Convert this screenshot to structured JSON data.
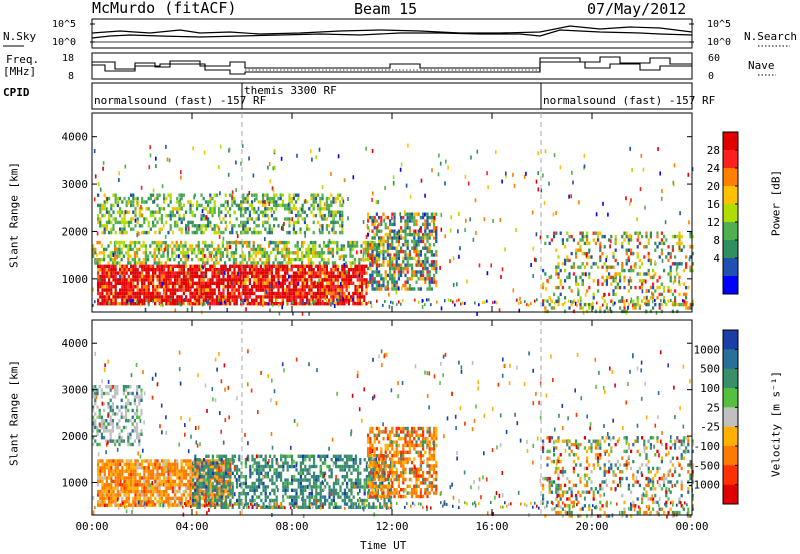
{
  "header": {
    "station": "McMurdo (fitACF)",
    "beam": "Beam 15",
    "date": "07/May/2012"
  },
  "noise_panel": {
    "left_label": "N.Sky",
    "right_label": "N.Search",
    "left_ticks": [
      "10^5",
      "10^0"
    ],
    "right_ticks": [
      "10^5",
      "10^0"
    ]
  },
  "freq_panel": {
    "left_label_1": "Freq.",
    "left_label_2": "[MHz]",
    "right_label": "Nave",
    "left_ticks": [
      "18",
      "8"
    ],
    "right_ticks": [
      "60",
      "0"
    ]
  },
  "cpid": {
    "label": "CPID",
    "segments": [
      {
        "text": "normalsound (fast) -157 RF",
        "start_hour": 0
      },
      {
        "text": "themis 3300 RF",
        "start_hour": 6
      },
      {
        "text": "normalsound (fast) -157 RF",
        "start_hour": 18
      }
    ]
  },
  "chart_data": [
    {
      "type": "heatmap",
      "name": "power",
      "xlabel": "Time UT",
      "ylabel": "Slant Range [km]",
      "xlim": [
        0,
        24
      ],
      "ylim": [
        300,
        4500
      ],
      "y_ticks": [
        1000,
        2000,
        3000,
        4000
      ],
      "x_tick_labels": [
        "00:00",
        "04:00",
        "08:00",
        "12:00",
        "16:00",
        "20:00",
        "00:00"
      ],
      "colorbar": {
        "label": "Power [dB]",
        "ticks": [
          "28",
          "24",
          "20",
          "16",
          "12",
          "8",
          "4"
        ],
        "colors": [
          "#e00000",
          "#ff2020",
          "#ff7f00",
          "#ffc000",
          "#b0dc00",
          "#50b050",
          "#2f8f5f",
          "#2050b0",
          "#0000ff"
        ]
      },
      "regions": [
        {
          "t0": 0.2,
          "t1": 11.0,
          "r0": 500,
          "r1": 1300,
          "level": "28+"
        },
        {
          "t0": 0.0,
          "t1": 11.5,
          "r0": 1300,
          "r1": 1800,
          "level": "12-20"
        },
        {
          "t0": 0.2,
          "t1": 10.0,
          "r0": 1950,
          "r1": 2800,
          "level": "12-20"
        },
        {
          "t0": 11.0,
          "t1": 13.8,
          "r0": 800,
          "r1": 2400,
          "level": "8-24"
        },
        {
          "t0": 18.0,
          "t1": 24.0,
          "r0": 300,
          "r1": 2000,
          "level": "4-20"
        }
      ]
    },
    {
      "type": "heatmap",
      "name": "velocity",
      "xlabel": "Time UT",
      "ylabel": "Slant Range [km]",
      "xlim": [
        0,
        24
      ],
      "ylim": [
        300,
        4500
      ],
      "y_ticks": [
        1000,
        2000,
        3000,
        4000
      ],
      "x_tick_labels": [
        "00:00",
        "04:00",
        "08:00",
        "12:00",
        "16:00",
        "20:00",
        "00:00"
      ],
      "colorbar": {
        "label": "Velocity [m s⁻¹]",
        "ticks": [
          "1000",
          "500",
          "100",
          "25",
          "-25",
          "-100",
          "-500",
          "-1000"
        ],
        "colors": [
          "#1a3ea8",
          "#2a6e9a",
          "#3a8f6a",
          "#55c040",
          "#c0c0c0",
          "#ffb000",
          "#ff7a00",
          "#ff3000",
          "#e00000"
        ]
      },
      "regions": [
        {
          "t0": 0.2,
          "t1": 5.5,
          "r0": 500,
          "r1": 1500,
          "level": "-100 to -500"
        },
        {
          "t0": 4.0,
          "t1": 12.0,
          "r0": 500,
          "r1": 1600,
          "level": "25 to 100"
        },
        {
          "t0": 0.0,
          "t1": 2.0,
          "r0": 1800,
          "r1": 3100,
          "level": "-25 to 25"
        },
        {
          "t0": 11.0,
          "t1": 13.8,
          "r0": 700,
          "r1": 2200,
          "level": "-100 to -500"
        },
        {
          "t0": 18.0,
          "t1": 24.0,
          "r0": 300,
          "r1": 2000,
          "level": "mixed"
        }
      ]
    }
  ]
}
